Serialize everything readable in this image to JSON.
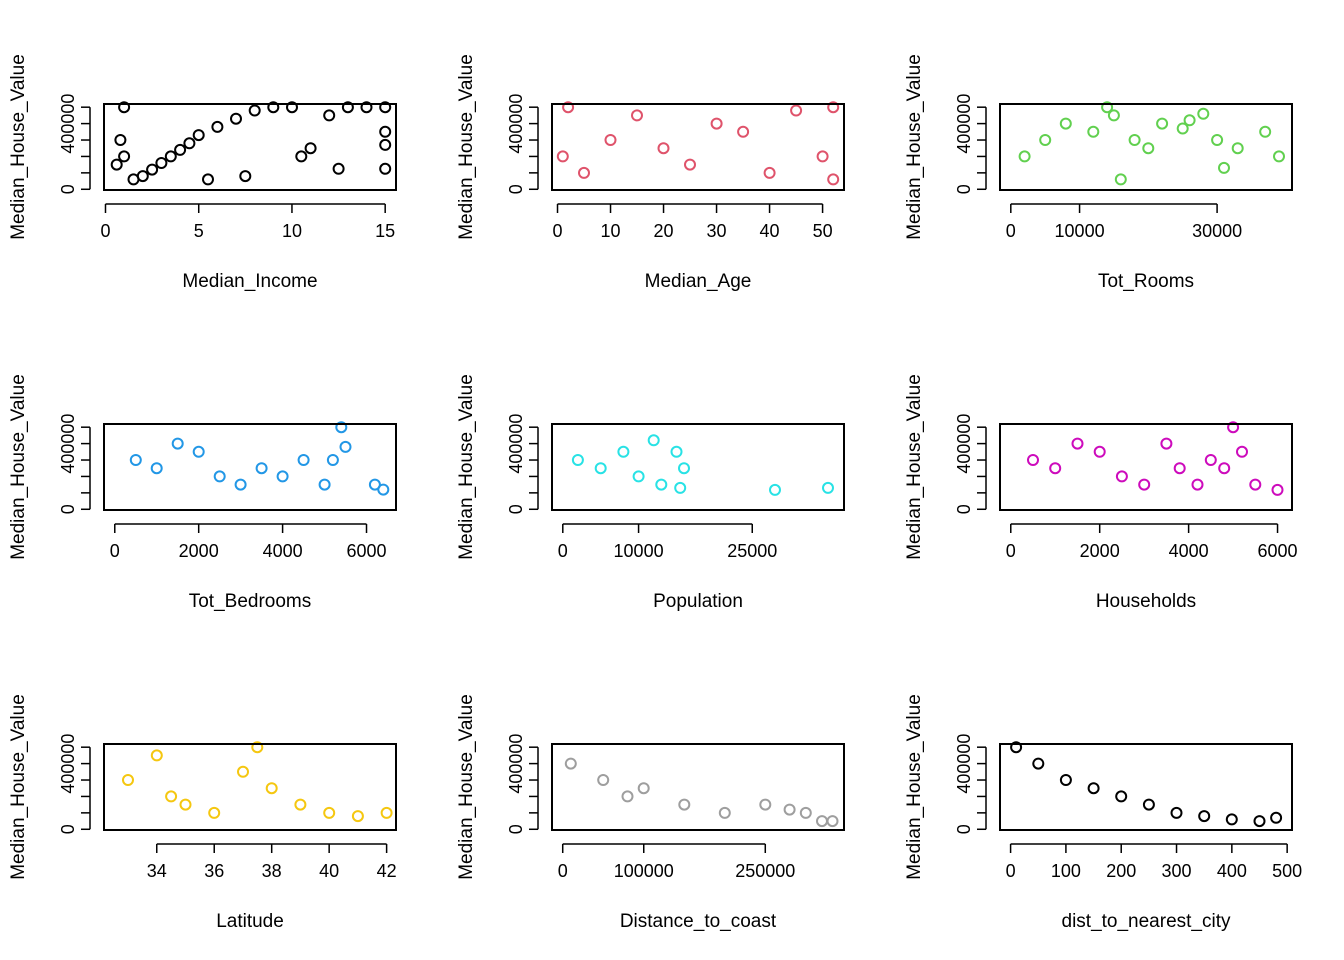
{
  "chart_data": [
    {
      "type": "scatter",
      "xlabel": "Median_Income",
      "ylabel": "Median_House_Value",
      "color": "#000000",
      "xlim": [
        0.4999,
        15.0001
      ],
      "ylim": [
        14999,
        500001
      ],
      "xticks": [
        0,
        5,
        10,
        15
      ],
      "yticks": [
        0,
        400000
      ],
      "points": [
        [
          1.5,
          60000
        ],
        [
          2,
          80000
        ],
        [
          2.5,
          120000
        ],
        [
          3,
          160000
        ],
        [
          3.5,
          200000
        ],
        [
          4,
          240000
        ],
        [
          4.5,
          280000
        ],
        [
          5,
          330000
        ],
        [
          6,
          380000
        ],
        [
          7,
          430000
        ],
        [
          8,
          480000
        ],
        [
          9,
          500001
        ],
        [
          10,
          500001
        ],
        [
          10.5,
          200000
        ],
        [
          11,
          250000
        ],
        [
          12.5,
          125000
        ],
        [
          12,
          450000
        ],
        [
          15,
          500001
        ],
        [
          15,
          350000
        ],
        [
          15,
          270000
        ],
        [
          15,
          125000
        ],
        [
          14,
          500001
        ],
        [
          13,
          500001
        ],
        [
          1,
          500001
        ],
        [
          0.8,
          300000
        ],
        [
          1,
          200000
        ],
        [
          0.6,
          150000
        ],
        [
          7.5,
          80000
        ],
        [
          5.5,
          60000
        ]
      ]
    },
    {
      "type": "scatter",
      "xlabel": "Median_Age",
      "ylabel": "Median_House_Value",
      "color": "#DF536B",
      "xlim": [
        1,
        52
      ],
      "ylim": [
        14999,
        500001
      ],
      "xticks": [
        0,
        10,
        20,
        30,
        40,
        50
      ],
      "yticks": [
        0,
        400000
      ],
      "points": [
        [
          1,
          200000
        ],
        [
          2,
          500001
        ],
        [
          5,
          100000
        ],
        [
          10,
          300000
        ],
        [
          15,
          450000
        ],
        [
          20,
          250000
        ],
        [
          25,
          150000
        ],
        [
          30,
          400000
        ],
        [
          35,
          350000
        ],
        [
          40,
          100000
        ],
        [
          45,
          480000
        ],
        [
          50,
          200000
        ],
        [
          52,
          500001
        ],
        [
          52,
          60000
        ]
      ]
    },
    {
      "type": "scatter",
      "xlabel": "Tot_Rooms",
      "ylabel": "Median_House_Value",
      "color": "#61D04F",
      "xlim": [
        2,
        39320
      ],
      "ylim": [
        14999,
        500001
      ],
      "xticks": [
        0,
        10000,
        30000
      ],
      "yticks": [
        0,
        400000
      ],
      "points": [
        [
          2000,
          200000
        ],
        [
          5000,
          300000
        ],
        [
          8000,
          400000
        ],
        [
          12000,
          350000
        ],
        [
          14000,
          500001
        ],
        [
          15000,
          450000
        ],
        [
          16000,
          60000
        ],
        [
          18000,
          300000
        ],
        [
          20000,
          250000
        ],
        [
          22000,
          400000
        ],
        [
          25000,
          370000
        ],
        [
          26000,
          420000
        ],
        [
          28000,
          460000
        ],
        [
          30000,
          300000
        ],
        [
          31000,
          130000
        ],
        [
          33000,
          250000
        ],
        [
          37000,
          350000
        ],
        [
          39000,
          200000
        ]
      ]
    },
    {
      "type": "scatter",
      "xlabel": "Tot_Bedrooms",
      "ylabel": "Median_House_Value",
      "color": "#2297E6",
      "xlim": [
        1,
        6445
      ],
      "ylim": [
        14999,
        500001
      ],
      "xticks": [
        0,
        2000,
        4000,
        6000
      ],
      "yticks": [
        0,
        400000
      ],
      "points": [
        [
          500,
          300000
        ],
        [
          1000,
          250000
        ],
        [
          1500,
          400000
        ],
        [
          2000,
          350000
        ],
        [
          2500,
          200000
        ],
        [
          3000,
          150000
        ],
        [
          3500,
          250000
        ],
        [
          4000,
          200000
        ],
        [
          4500,
          300000
        ],
        [
          5000,
          150000
        ],
        [
          5200,
          300000
        ],
        [
          5400,
          500001
        ],
        [
          5500,
          380000
        ],
        [
          6200,
          150000
        ],
        [
          6400,
          120000
        ]
      ]
    },
    {
      "type": "scatter",
      "xlabel": "Population",
      "ylabel": "Median_House_Value",
      "color": "#28E2E5",
      "xlim": [
        3,
        35682
      ],
      "ylim": [
        14999,
        500001
      ],
      "xticks": [
        0,
        10000,
        25000
      ],
      "yticks": [
        0,
        400000
      ],
      "points": [
        [
          2000,
          300000
        ],
        [
          5000,
          250000
        ],
        [
          8000,
          350000
        ],
        [
          10000,
          200000
        ],
        [
          12000,
          420000
        ],
        [
          13000,
          150000
        ],
        [
          15000,
          350000
        ],
        [
          16000,
          250000
        ],
        [
          15500,
          130000
        ],
        [
          28000,
          118000
        ],
        [
          35000,
          130000
        ]
      ]
    },
    {
      "type": "scatter",
      "xlabel": "Households",
      "ylabel": "Median_House_Value",
      "color": "#CD0BBC",
      "xlim": [
        1,
        6082
      ],
      "ylim": [
        14999,
        500001
      ],
      "xticks": [
        0,
        2000,
        4000,
        6000
      ],
      "yticks": [
        0,
        400000
      ],
      "points": [
        [
          500,
          300000
        ],
        [
          1000,
          250000
        ],
        [
          1500,
          400000
        ],
        [
          2000,
          350000
        ],
        [
          2500,
          200000
        ],
        [
          3000,
          150000
        ],
        [
          3500,
          400000
        ],
        [
          3800,
          250000
        ],
        [
          4200,
          150000
        ],
        [
          4500,
          300000
        ],
        [
          4800,
          250000
        ],
        [
          5000,
          500001
        ],
        [
          5200,
          350000
        ],
        [
          5500,
          150000
        ],
        [
          6000,
          118000
        ]
      ]
    },
    {
      "type": "scatter",
      "xlabel": "Latitude",
      "ylabel": "Median_House_Value",
      "color": "#F5C710",
      "xlim": [
        32.54,
        41.95
      ],
      "ylim": [
        14999,
        500001
      ],
      "xticks": [
        34,
        36,
        38,
        40,
        42
      ],
      "yticks": [
        0,
        400000
      ],
      "points": [
        [
          33,
          300000
        ],
        [
          34,
          450000
        ],
        [
          34.5,
          200000
        ],
        [
          35,
          150000
        ],
        [
          36,
          100000
        ],
        [
          37,
          350000
        ],
        [
          37.5,
          500001
        ],
        [
          38,
          250000
        ],
        [
          39,
          150000
        ],
        [
          40,
          100000
        ],
        [
          41,
          80000
        ],
        [
          42,
          100000
        ]
      ]
    },
    {
      "type": "scatter",
      "xlabel": "Distance_to_coast",
      "ylabel": "Median_House_Value",
      "color": "#9E9E9E",
      "xlim": [
        120.68,
        333804.69
      ],
      "ylim": [
        14999,
        500001
      ],
      "xticks": [
        0,
        100000,
        250000
      ],
      "yticks": [
        0,
        400000
      ],
      "points": [
        [
          10000,
          400000
        ],
        [
          50000,
          300000
        ],
        [
          80000,
          200000
        ],
        [
          100000,
          250000
        ],
        [
          150000,
          150000
        ],
        [
          200000,
          100000
        ],
        [
          250000,
          150000
        ],
        [
          280000,
          120000
        ],
        [
          300000,
          100000
        ],
        [
          320000,
          50000
        ],
        [
          333000,
          50000
        ]
      ]
    },
    {
      "type": "scatter",
      "xlabel": "dist_to_nearest_city",
      "ylabel": "Median_House_Value",
      "color": "#000000",
      "xlim": [
        0.4,
        489.2
      ],
      "ylim": [
        14999,
        500001
      ],
      "xticks": [
        0,
        100,
        200,
        300,
        400,
        500
      ],
      "yticks": [
        0,
        400000
      ],
      "points": [
        [
          10,
          500001
        ],
        [
          50,
          400000
        ],
        [
          100,
          300000
        ],
        [
          150,
          250000
        ],
        [
          200,
          200000
        ],
        [
          250,
          150000
        ],
        [
          300,
          100000
        ],
        [
          350,
          80000
        ],
        [
          400,
          60000
        ],
        [
          450,
          50000
        ],
        [
          480,
          70000
        ]
      ]
    }
  ]
}
